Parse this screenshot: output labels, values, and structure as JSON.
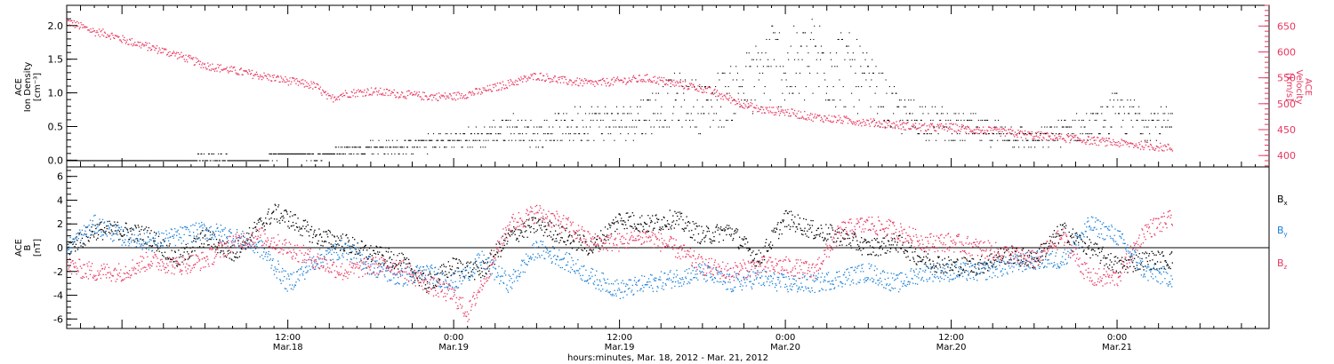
{
  "figure": {
    "xlabel": "hours:minutes, Mar. 18, 2012 - Mar. 21, 2012",
    "x_ticks": [
      {
        "time": 12,
        "top": "12:00",
        "bottom": "Mar.18"
      },
      {
        "time": 24,
        "top": "0:00",
        "bottom": "Mar.19"
      },
      {
        "time": 36,
        "top": "12:00",
        "bottom": "Mar.19"
      },
      {
        "time": 48,
        "top": "0:00",
        "bottom": "Mar.20"
      },
      {
        "time": 60,
        "top": "12:00",
        "bottom": "Mar.20"
      },
      {
        "time": 72,
        "top": "0:00",
        "bottom": "Mar.21"
      }
    ]
  },
  "colors": {
    "black": "#000000",
    "pink": "#e8365f",
    "blue": "#1a7fd6"
  },
  "chart_data": [
    {
      "type": "scatter",
      "x_unit": "hours since Mar. 18, 2012 00:00",
      "xlim": [
        -4,
        83
      ],
      "left_axis": {
        "label_lines": [
          "ACE",
          "Ion Density",
          "[cm⁻³]"
        ],
        "ylim": [
          -0.1,
          2.3
        ],
        "ticks": [
          "0.0",
          "0.5",
          "1.0",
          "1.5",
          "2.0"
        ],
        "tick_values": [
          0,
          0.5,
          1.0,
          1.5,
          2.0
        ]
      },
      "right_axis": {
        "label_lines": [
          "ACE",
          "Velocity",
          "[km/s]"
        ],
        "ylim": [
          378,
          690
        ],
        "ticks": [
          "400",
          "450",
          "500",
          "550",
          "600",
          "650"
        ],
        "tick_values": [
          400,
          450,
          500,
          550,
          600,
          650
        ]
      },
      "series": [
        {
          "key": "density",
          "axis": "left",
          "color": "#000000",
          "x": [
            -4,
            2,
            6,
            10,
            12,
            14,
            16,
            18,
            20,
            22,
            24,
            26,
            28,
            30,
            32,
            34,
            36,
            38,
            40,
            42,
            44,
            46,
            47,
            48,
            50,
            52,
            54,
            56,
            58,
            60,
            62,
            64,
            66,
            68,
            70,
            72,
            74,
            76
          ],
          "y": [
            0.0,
            0.0,
            0.05,
            0.02,
            0.1,
            0.05,
            0.15,
            0.2,
            0.2,
            0.25,
            0.3,
            0.35,
            0.5,
            0.4,
            0.5,
            0.6,
            0.55,
            0.7,
            0.9,
            0.8,
            1.0,
            1.2,
            1.5,
            1.3,
            1.5,
            1.4,
            1.1,
            0.7,
            0.6,
            0.5,
            0.45,
            0.4,
            0.3,
            0.45,
            0.5,
            0.7,
            0.6,
            0.5
          ]
        },
        {
          "key": "velocity",
          "axis": "right",
          "color": "#e8365f",
          "x": [
            -4,
            -3,
            -2,
            -1,
            0,
            2,
            4,
            6,
            8,
            10,
            12,
            14,
            15,
            16,
            18,
            20,
            22,
            24,
            26,
            28,
            30,
            32,
            34,
            36,
            38,
            40,
            42,
            44,
            46,
            48,
            50,
            52,
            54,
            56,
            58,
            60,
            62,
            64,
            66,
            68,
            70,
            72,
            74,
            76
          ],
          "y": [
            660,
            650,
            640,
            635,
            625,
            610,
            595,
            575,
            565,
            555,
            545,
            535,
            510,
            520,
            525,
            520,
            515,
            515,
            525,
            540,
            555,
            545,
            540,
            545,
            550,
            540,
            530,
            510,
            490,
            485,
            475,
            470,
            465,
            460,
            455,
            455,
            450,
            445,
            440,
            435,
            430,
            425,
            420,
            415
          ]
        }
      ]
    },
    {
      "type": "scatter",
      "x_unit": "hours since Mar. 18, 2012 00:00",
      "xlim": [
        -4,
        83
      ],
      "left_axis": {
        "label_lines": [
          "ACE",
          "B",
          "[nT]"
        ],
        "ylim": [
          -6.8,
          6.8
        ],
        "ticks": [
          "-6",
          "-4",
          "-2",
          "0",
          "2",
          "4",
          "6"
        ],
        "tick_values": [
          -6,
          -4,
          -2,
          0,
          2,
          4,
          6
        ]
      },
      "zero_line": true,
      "legend": {
        "placement": "right",
        "entries": [
          {
            "label": "B",
            "sub": "x",
            "color": "#000000"
          },
          {
            "label": "B",
            "sub": "y",
            "color": "#1a7fd6"
          },
          {
            "label": "B",
            "sub": "z",
            "color": "#e8365f"
          }
        ]
      },
      "series": [
        {
          "key": "bx",
          "color": "#000000",
          "x": [
            -4,
            -2,
            0,
            2,
            4,
            6,
            8,
            10,
            11,
            12,
            14,
            16,
            18,
            20,
            22,
            24,
            26,
            28,
            30,
            32,
            34,
            36,
            38,
            40,
            42,
            44,
            46,
            48,
            50,
            52,
            54,
            56,
            58,
            60,
            62,
            64,
            66,
            68,
            70,
            72,
            74,
            76
          ],
          "y": [
            0,
            1.5,
            1.5,
            1,
            -1,
            1,
            -0.5,
            2,
            3,
            2.5,
            1,
            0.5,
            -0.5,
            -1,
            -3,
            -1.5,
            -2,
            1,
            2,
            1,
            0,
            2.5,
            2,
            2.5,
            1,
            1.5,
            -1,
            2.5,
            1.5,
            1,
            0,
            0.5,
            -1,
            -1.5,
            -1.5,
            -0.5,
            -1,
            1.5,
            0,
            -1.5,
            -1,
            -1
          ]
        },
        {
          "key": "by",
          "color": "#1a7fd6",
          "x": [
            -4,
            -2,
            0,
            2,
            4,
            6,
            8,
            10,
            12,
            14,
            16,
            18,
            20,
            22,
            24,
            26,
            28,
            30,
            32,
            34,
            36,
            38,
            40,
            42,
            44,
            46,
            48,
            50,
            52,
            54,
            56,
            58,
            60,
            62,
            64,
            66,
            68,
            70,
            72,
            74,
            76
          ],
          "y": [
            0,
            2,
            1,
            0.5,
            1,
            1.5,
            1,
            0,
            -3,
            -1,
            0,
            -1.5,
            -2.5,
            -2,
            -3,
            -1,
            -3,
            0,
            -1,
            -2.5,
            -3.5,
            -3,
            -2.5,
            -2,
            -3,
            -2.5,
            -3,
            -3,
            -2.5,
            -2,
            -3,
            -2,
            -2,
            -2,
            -1.5,
            -1,
            -1,
            2,
            1,
            -2,
            -2.5
          ]
        },
        {
          "key": "bz",
          "color": "#e8365f",
          "x": [
            -4,
            -2,
            0,
            2,
            4,
            6,
            8,
            10,
            12,
            14,
            16,
            18,
            20,
            22,
            24,
            25,
            26,
            28,
            30,
            32,
            34,
            36,
            38,
            40,
            42,
            44,
            46,
            48,
            50,
            52,
            54,
            56,
            58,
            60,
            62,
            64,
            66,
            68,
            70,
            72,
            74,
            76
          ],
          "y": [
            -1.5,
            -2,
            -2,
            -1,
            -1.5,
            -1,
            0.5,
            1,
            0,
            -1,
            -2,
            -1.5,
            -1.5,
            -3,
            -4,
            -5.5,
            -3,
            2,
            3,
            2,
            0.5,
            0.5,
            1,
            0,
            -1.5,
            -2,
            -1.5,
            -1.5,
            -2,
            1.5,
            2,
            1.5,
            0.5,
            0.5,
            0,
            -0.5,
            -1,
            1,
            -2.5,
            -2.5,
            1.5,
            2.5
          ]
        }
      ]
    }
  ]
}
